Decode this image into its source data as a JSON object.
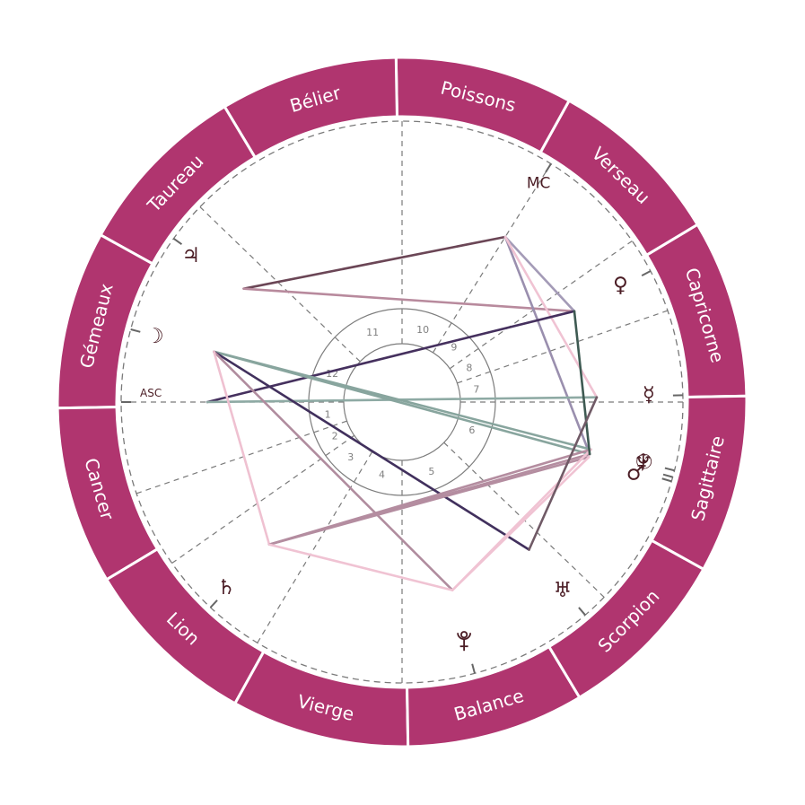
{
  "zodiac": {
    "ring_color": "#b0356f",
    "divider_color": "#ffffff",
    "label_color": "#ffffff",
    "boundary_offset_deg": 1,
    "signs": [
      {
        "name": "Capricorne"
      },
      {
        "name": "Verseau"
      },
      {
        "name": "Poissons"
      },
      {
        "name": "Bélier"
      },
      {
        "name": "Taureau"
      },
      {
        "name": "Gémeaux"
      },
      {
        "name": "Cancer"
      },
      {
        "name": "Lion"
      },
      {
        "name": "Vierge"
      },
      {
        "name": "Balance"
      },
      {
        "name": "Scorpion"
      },
      {
        "name": "Sagittaire"
      }
    ]
  },
  "houses": {
    "cusps_deg": [
      180,
      199,
      215,
      239,
      270,
      316,
      0,
      19,
      35,
      58,
      90,
      136
    ],
    "numbers": [
      "1",
      "2",
      "3",
      "4",
      "5",
      "6",
      "7",
      "8",
      "9",
      "10",
      "11",
      "12"
    ],
    "line_color": "#7a7a7a"
  },
  "angles": {
    "asc": {
      "label": "ASC",
      "deg": 180,
      "label_deg": 178,
      "label_r": 280,
      "size": 12
    },
    "mc": {
      "label": "MC",
      "deg": 58,
      "label_deg": 58,
      "label_r": 287,
      "size": 17
    }
  },
  "planets": [
    {
      "id": "jupiter",
      "name": "Jupiter",
      "glyph": "♃",
      "deg": 144.4,
      "glyph_deg": 145.3,
      "glyph_r": 286
    },
    {
      "id": "moon",
      "name": "Lune",
      "glyph": "☽",
      "deg": 165.0,
      "glyph_deg": 165.2,
      "glyph_r": 285
    },
    {
      "id": "venus",
      "name": "Vénus",
      "glyph": "♀",
      "deg": 27.8,
      "glyph_deg": 28.1,
      "glyph_r": 276
    },
    {
      "id": "mercury",
      "name": "Mercure",
      "glyph": "☿",
      "deg": 1.4,
      "glyph_deg": 1.7,
      "glyph_r": 275
    },
    {
      "id": "sun",
      "name": "Soleil",
      "glyph": "☉",
      "deg": 345.9,
      "glyph_deg": 346.0,
      "glyph_r": 278
    },
    {
      "id": "neptune",
      "name": "Neptune",
      "glyph": "♆",
      "deg": 344.5,
      "glyph_deg": 346.0,
      "glyph_r": 277
    },
    {
      "id": "mars",
      "name": "Mars",
      "glyph": "♂",
      "deg": 343.6,
      "glyph_deg": 343.0,
      "glyph_r": 272
    },
    {
      "id": "uranus",
      "name": "Uranus",
      "glyph": "♅",
      "deg": 310.7,
      "glyph_deg": 310.4,
      "glyph_r": 276
    },
    {
      "id": "pluto",
      "name": "Pluton",
      "glyph": "pluto-symbol",
      "deg": 285.0,
      "glyph_deg": 284.5,
      "glyph_r": 276
    },
    {
      "id": "saturn",
      "name": "Saturne",
      "glyph": "♄",
      "deg": 227.0,
      "glyph_deg": 226.6,
      "glyph_r": 285
    }
  ],
  "aspects": [
    {
      "from": "jupiter",
      "to": "mc",
      "color": "#6b4656"
    },
    {
      "from": "jupiter",
      "to": "venus",
      "color": "#b88a9d"
    },
    {
      "from": "mc",
      "to": "venus",
      "color": "#a49bb7"
    },
    {
      "from": "mc",
      "to": "neptune",
      "color": "#9a8fae"
    },
    {
      "from": "mc",
      "to": "mercury",
      "color": "#f0c3d3"
    },
    {
      "from": "asc",
      "to": "venus",
      "color": "#45305e"
    },
    {
      "from": "asc",
      "to": "mercury",
      "color": "#8eaaa4"
    },
    {
      "from": "moon",
      "to": "sun",
      "color": "#88a59e"
    },
    {
      "from": "moon",
      "to": "neptune",
      "color": "#88a59e"
    },
    {
      "from": "moon",
      "to": "uranus",
      "color": "#41305d"
    },
    {
      "from": "moon",
      "to": "pluto",
      "color": "#b08c9e"
    },
    {
      "from": "moon",
      "to": "saturn",
      "color": "#efc1d1"
    },
    {
      "from": "saturn",
      "to": "sun",
      "color": "#b48da0"
    },
    {
      "from": "saturn",
      "to": "neptune",
      "color": "#b48da0"
    },
    {
      "from": "saturn",
      "to": "mars",
      "color": "#b48da0"
    },
    {
      "from": "saturn",
      "to": "pluto",
      "color": "#f0c3d3"
    },
    {
      "from": "pluto",
      "to": "mars",
      "color": "#f0c3d3"
    },
    {
      "from": "pluto",
      "to": "sun",
      "color": "#f0c3d3"
    },
    {
      "from": "venus",
      "to": "neptune",
      "color": "#3e5a52"
    },
    {
      "from": "mercury",
      "to": "uranus",
      "color": "#705a66"
    }
  ],
  "styles": {
    "glyph_color": "#4b1d25",
    "house_number_color": "#7f7f7f",
    "tick_color": "#666666"
  }
}
